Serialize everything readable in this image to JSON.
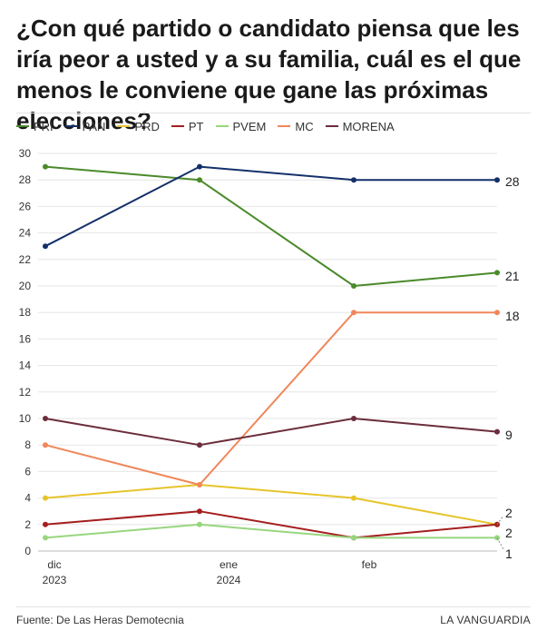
{
  "chart_data": {
    "type": "line",
    "title": "¿Con qué partido o candidato piensa que les iría peor a usted y a su familia, cuál es el que menos le conviene que gane las próximas elecciones?",
    "x_ticks": [
      {
        "line1": "dic",
        "line2": "2023"
      },
      {
        "line1": "ene",
        "line2": "2024"
      },
      {
        "line1": "feb",
        "line2": ""
      }
    ],
    "ylim": [
      0,
      30
    ],
    "y_ticks": [
      0,
      2,
      4,
      6,
      8,
      10,
      12,
      14,
      16,
      18,
      20,
      22,
      24,
      26,
      28,
      30
    ],
    "grid": true,
    "legend_position": "top",
    "series": [
      {
        "name": "PRI",
        "color": "#4a8a2a",
        "values": [
          29,
          28,
          20,
          21
        ],
        "end_label": "21"
      },
      {
        "name": "PAN",
        "color": "#14306a",
        "values": [
          23,
          29,
          28,
          28
        ],
        "end_label": "28"
      },
      {
        "name": "PRD",
        "color": "#e6c42a",
        "values": [
          4,
          5,
          4,
          2
        ],
        "end_label": ""
      },
      {
        "name": "PT",
        "color": "#a41e1e",
        "values": [
          2,
          3,
          1,
          2
        ],
        "end_label": "2"
      },
      {
        "name": "PVEM",
        "color": "#97d67f",
        "values": [
          1,
          2,
          1,
          1
        ],
        "end_label": "1"
      },
      {
        "name": "MC",
        "color": "#f0875a",
        "values": [
          8,
          5,
          18,
          18
        ],
        "end_label": "18"
      },
      {
        "name": "MORENA",
        "color": "#6b2d3c",
        "values": [
          10,
          8,
          10,
          9
        ],
        "end_label": "9"
      }
    ],
    "extra_labels": [
      "2"
    ]
  },
  "footer": {
    "source": "Fuente: De Las Heras Demotecnia",
    "brand": "LA VANGUARDIA"
  }
}
